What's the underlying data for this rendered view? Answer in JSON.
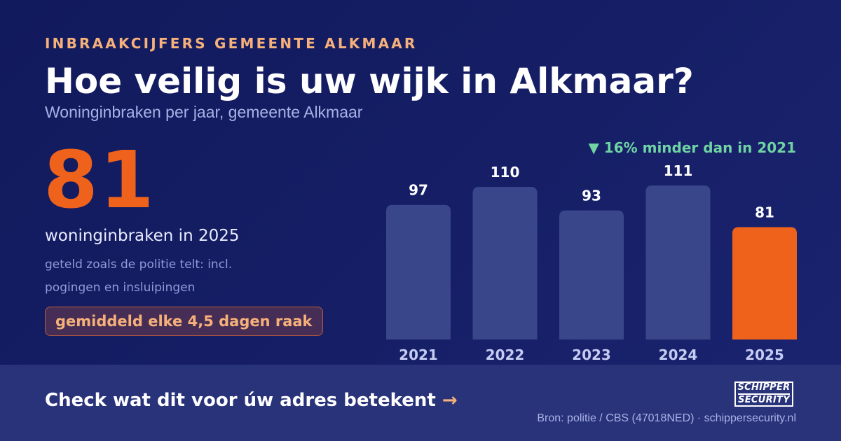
{
  "header": {
    "kicker": "INBRAAKCIJFERS GEMEENTE ALKMAAR",
    "title": "Hoe veilig is uw wijk in Alkmaar?",
    "subtitle": "Woninginbraken per jaar, gemeente Alkmaar"
  },
  "highlight": {
    "value": "81",
    "caption": "woninginbraken in 2025",
    "footnote": "geteld zoals de politie telt: incl. pogingen en insluipingen",
    "pill": "gemiddeld elke 4,5 dagen raak"
  },
  "change_label": "▼ 16% minder dan in 2021",
  "chart_data": {
    "type": "bar",
    "categories": [
      "2021",
      "2022",
      "2023",
      "2024",
      "2025"
    ],
    "values": [
      97,
      110,
      93,
      111,
      81
    ],
    "highlight_index": 4,
    "ylim": [
      0,
      111
    ],
    "grid": false,
    "colors": {
      "bar": "#394689",
      "highlight": "#ee621b",
      "value_label": "#ffffff",
      "tick_label": "#c5cbf2"
    }
  },
  "footer": {
    "cta": "Check wat dit voor úw adres betekent",
    "cta_arrow": "→",
    "logo_line1": "SCHIPPER",
    "logo_line2": "SECURITY",
    "source": "Bron: politie / CBS (47018NED) · schippersecurity.nl"
  }
}
